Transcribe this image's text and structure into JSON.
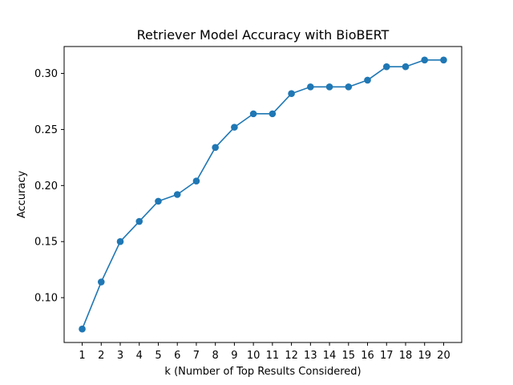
{
  "chart_data": {
    "type": "line",
    "title": "Retriever Model Accuracy with BioBERT",
    "xlabel": "k (Number of Top Results Considered)",
    "ylabel": "Accuracy",
    "x": [
      1,
      2,
      3,
      4,
      5,
      6,
      7,
      8,
      9,
      10,
      11,
      12,
      13,
      14,
      15,
      16,
      17,
      18,
      19,
      20
    ],
    "series": [
      {
        "values": [
          0.072,
          0.114,
          0.15,
          0.168,
          0.186,
          0.192,
          0.204,
          0.234,
          0.252,
          0.264,
          0.264,
          0.282,
          0.288,
          0.288,
          0.288,
          0.294,
          0.306,
          0.306,
          0.312,
          0.312
        ],
        "color": "#1f77b4",
        "marker": "circle"
      }
    ],
    "xlim": [
      0.05,
      20.95
    ],
    "ylim": [
      0.06,
      0.324
    ],
    "xticks": [
      "1",
      "2",
      "3",
      "4",
      "5",
      "6",
      "7",
      "8",
      "9",
      "10",
      "11",
      "12",
      "13",
      "14",
      "15",
      "16",
      "17",
      "18",
      "19",
      "20"
    ],
    "yticks": [
      "0.10",
      "0.15",
      "0.20",
      "0.25",
      "0.30"
    ],
    "grid": false,
    "legend": "none"
  }
}
